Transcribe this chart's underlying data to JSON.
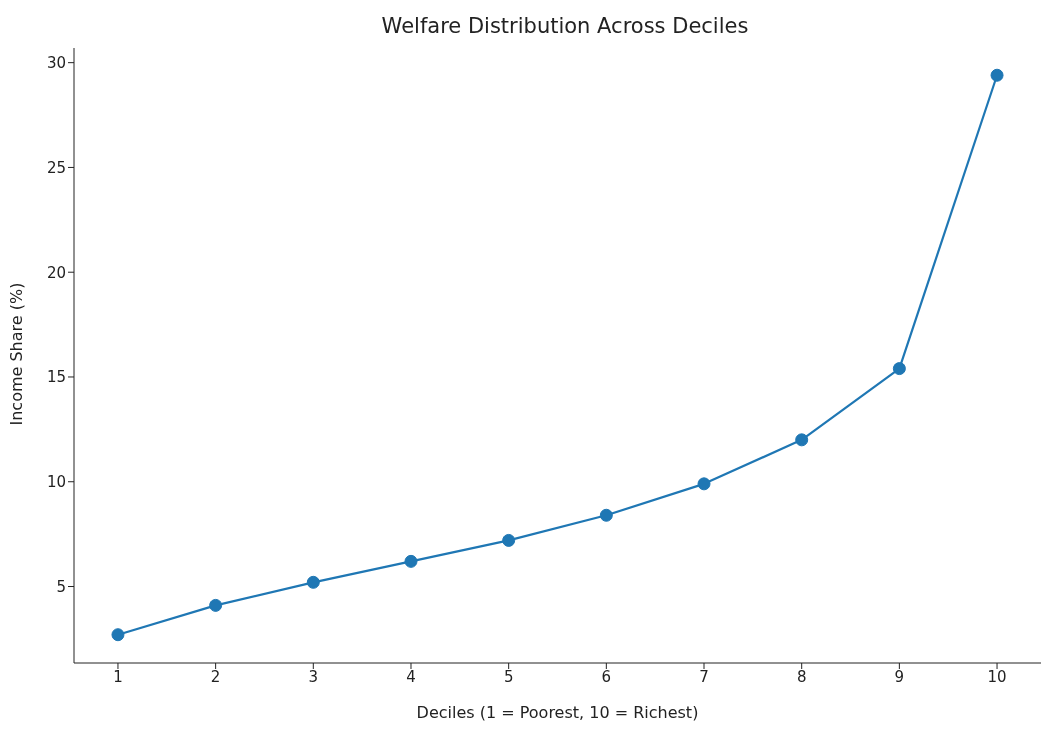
{
  "chart_data": {
    "type": "line",
    "title": "Welfare Distribution Across Deciles",
    "xlabel": "Deciles (1 = Poorest, 10 = Richest)",
    "ylabel": "Income Share (%)",
    "x": [
      1,
      2,
      3,
      4,
      5,
      6,
      7,
      8,
      9,
      10
    ],
    "series": [
      {
        "color": "#1f77b4",
        "values": [
          2.7,
          4.1,
          5.2,
          6.2,
          7.2,
          8.4,
          9.9,
          12.0,
          15.4,
          29.4
        ]
      }
    ],
    "xlim": [
      0.55,
      10.45
    ],
    "xticks": [
      1,
      2,
      3,
      4,
      5,
      6,
      7,
      8,
      9,
      10
    ],
    "ylim": [
      1.35,
      30.7
    ],
    "yticks": [
      5,
      10,
      15,
      20,
      25,
      30
    ],
    "grid": false,
    "marker": "circle",
    "line_style": "solid"
  }
}
